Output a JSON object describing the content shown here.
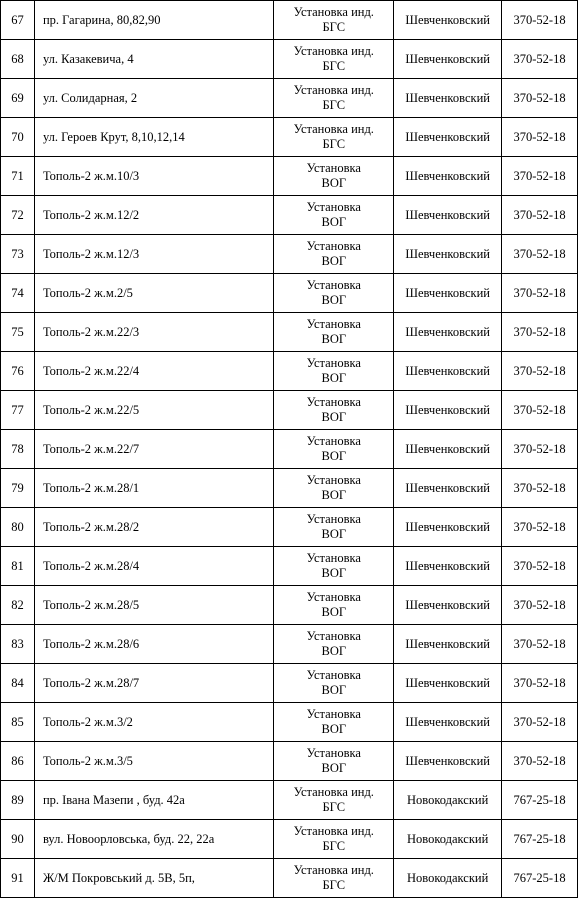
{
  "table": {
    "columns": [
      {
        "key": "num",
        "class": "col-num"
      },
      {
        "key": "addr",
        "class": "col-addr"
      },
      {
        "key": "install",
        "class": "col-install"
      },
      {
        "key": "district",
        "class": "col-district"
      },
      {
        "key": "phone",
        "class": "col-phone"
      }
    ],
    "rows": [
      {
        "num": "67",
        "addr": "пр. Гагарина, 80,82,90",
        "install": "Установка инд. БГС",
        "district": "Шевченковский",
        "phone": "370-52-18"
      },
      {
        "num": "68",
        "addr": "ул. Казакевича, 4",
        "install": "Установка инд. БГС",
        "district": "Шевченковский",
        "phone": "370-52-18"
      },
      {
        "num": "69",
        "addr": "ул. Солидарная, 2",
        "install": "Установка инд. БГС",
        "district": "Шевченковский",
        "phone": "370-52-18"
      },
      {
        "num": "70",
        "addr": "ул. Героев  Крут, 8,10,12,14",
        "install": "Установка инд. БГС",
        "district": "Шевченковский",
        "phone": "370-52-18"
      },
      {
        "num": "71",
        "addr": "Тополь-2 ж.м.10/3",
        "install": "Установка ВОГ",
        "district": "Шевченковский",
        "phone": "370-52-18"
      },
      {
        "num": "72",
        "addr": "Тополь-2 ж.м.12/2",
        "install": "Установка ВОГ",
        "district": "Шевченковский",
        "phone": "370-52-18"
      },
      {
        "num": "73",
        "addr": "Тополь-2 ж.м.12/3",
        "install": "Установка ВОГ",
        "district": "Шевченковский",
        "phone": "370-52-18"
      },
      {
        "num": "74",
        "addr": "Тополь-2 ж.м.2/5",
        "install": "Установка ВОГ",
        "district": "Шевченковский",
        "phone": "370-52-18"
      },
      {
        "num": "75",
        "addr": "Тополь-2 ж.м.22/3",
        "install": "Установка ВОГ",
        "district": "Шевченковский",
        "phone": "370-52-18"
      },
      {
        "num": "76",
        "addr": "Тополь-2 ж.м.22/4",
        "install": "Установка ВОГ",
        "district": "Шевченковский",
        "phone": "370-52-18"
      },
      {
        "num": "77",
        "addr": "Тополь-2 ж.м.22/5",
        "install": "Установка ВОГ",
        "district": "Шевченковский",
        "phone": "370-52-18"
      },
      {
        "num": "78",
        "addr": "Тополь-2 ж.м.22/7",
        "install": "Установка ВОГ",
        "district": "Шевченковский",
        "phone": "370-52-18"
      },
      {
        "num": "79",
        "addr": "Тополь-2 ж.м.28/1",
        "install": "Установка ВОГ",
        "district": "Шевченковский",
        "phone": "370-52-18"
      },
      {
        "num": "80",
        "addr": "Тополь-2 ж.м.28/2",
        "install": "Установка ВОГ",
        "district": "Шевченковский",
        "phone": "370-52-18"
      },
      {
        "num": "81",
        "addr": "Тополь-2 ж.м.28/4",
        "install": "Установка ВОГ",
        "district": "Шевченковский",
        "phone": "370-52-18"
      },
      {
        "num": "82",
        "addr": "Тополь-2 ж.м.28/5",
        "install": "Установка ВОГ",
        "district": "Шевченковский",
        "phone": "370-52-18"
      },
      {
        "num": "83",
        "addr": "Тополь-2 ж.м.28/6",
        "install": "Установка ВОГ",
        "district": "Шевченковский",
        "phone": "370-52-18"
      },
      {
        "num": "84",
        "addr": "Тополь-2 ж.м.28/7",
        "install": "Установка ВОГ",
        "district": "Шевченковский",
        "phone": "370-52-18"
      },
      {
        "num": "85",
        "addr": "Тополь-2 ж.м.3/2",
        "install": "Установка ВОГ",
        "district": "Шевченковский",
        "phone": "370-52-18"
      },
      {
        "num": "86",
        "addr": "Тополь-2 ж.м.3/5",
        "install": "Установка ВОГ",
        "district": "Шевченковский",
        "phone": "370-52-18"
      },
      {
        "num": "89",
        "addr": "пр. Івана Мазепи ,  буд. 42а",
        "install": "Установка инд. БГС",
        "district": "Новокодакский",
        "phone": "767-25-18"
      },
      {
        "num": "90",
        "addr": "вул. Новоорловська,  буд. 22, 22а",
        "install": "Установка инд. БГС",
        "district": "Новокодакский",
        "phone": "767-25-18"
      },
      {
        "num": "91",
        "addr": "Ж/М Покровський д. 5В, 5п,",
        "install": "Установка инд. БГС",
        "district": "Новокодакский",
        "phone": "767-25-18"
      }
    ]
  }
}
